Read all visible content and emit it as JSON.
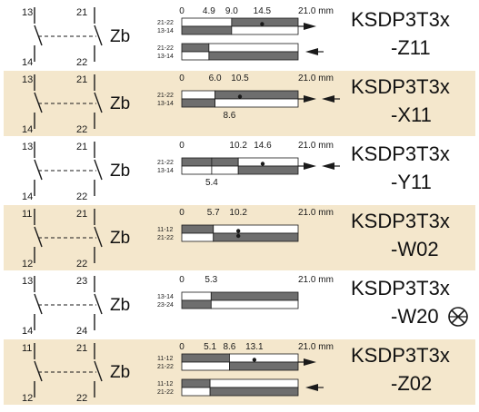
{
  "diagram": {
    "chart_data": [
      {
        "type": "travel-diagram",
        "contacts": {
          "tl": "13",
          "tr": "21",
          "bl": "14",
          "br": "22"
        },
        "function": "Zb",
        "model": [
          "KSDP3T3x",
          "-Z11"
        ],
        "ticks_top": [
          {
            "x": 0,
            "label": "0"
          },
          {
            "x": 4.9,
            "label": "4.9"
          },
          {
            "x": 9.0,
            "label": "9.0"
          },
          {
            "x": 14.5,
            "label": "14.5"
          },
          {
            "x": 21.0,
            "label": "21.0 mm"
          }
        ],
        "ticks_bottom": [],
        "bars": [
          {
            "labels": [
              "21-22",
              "13-14"
            ],
            "segments": [
              {
                "from": 0,
                "to": 9.0,
                "state": "open"
              },
              {
                "from": 9.0,
                "to": 21.0,
                "state": "closed"
              }
            ],
            "dot": 14.5,
            "arrow": "right"
          },
          {
            "labels": [
              "21-22",
              "13-14"
            ],
            "segments": [
              {
                "from": 0,
                "to": 4.9,
                "state": "closed"
              },
              {
                "from": 4.9,
                "to": 21.0,
                "state": "open"
              }
            ],
            "dot": null,
            "arrow": "left"
          }
        ],
        "bg": "plain"
      },
      {
        "type": "travel-diagram",
        "contacts": {
          "tl": "13",
          "tr": "21",
          "bl": "14",
          "br": "22"
        },
        "function": "Zb",
        "model": [
          "KSDP3T3x",
          "-X11"
        ],
        "ticks_top": [
          {
            "x": 0,
            "label": "0"
          },
          {
            "x": 6.0,
            "label": "6.0"
          },
          {
            "x": 10.5,
            "label": "10.5"
          },
          {
            "x": 21.0,
            "label": "21.0 mm"
          }
        ],
        "ticks_bottom": [
          {
            "x": 8.6,
            "label": "8.6"
          }
        ],
        "bars": [
          {
            "labels": [
              "21-22",
              "13-14"
            ],
            "segments": [
              {
                "from": 0,
                "to": 6.0,
                "state": "open"
              },
              {
                "from": 6.0,
                "to": 21.0,
                "state": "closed"
              }
            ],
            "dot": 10.5,
            "arrow": "both"
          }
        ],
        "bg": "tint"
      },
      {
        "type": "travel-diagram",
        "contacts": {
          "tl": "13",
          "tr": "21",
          "bl": "14",
          "br": "22"
        },
        "function": "Zb",
        "model": [
          "KSDP3T3x",
          "-Y11"
        ],
        "ticks_top": [
          {
            "x": 0,
            "label": "0"
          },
          {
            "x": 10.2,
            "label": "10.2"
          },
          {
            "x": 14.6,
            "label": "14.6"
          },
          {
            "x": 21.0,
            "label": "21.0 mm"
          }
        ],
        "ticks_bottom": [
          {
            "x": 5.4,
            "label": "5.4"
          }
        ],
        "bars": [
          {
            "labels": [
              "21-22",
              "13-14"
            ],
            "segments": [
              {
                "from": 0,
                "to": 5.4,
                "state": "closed"
              },
              {
                "from": 5.4,
                "to": 10.2,
                "state": "closed"
              },
              {
                "from": 10.2,
                "to": 21.0,
                "state": "open"
              }
            ],
            "dot": 14.6,
            "arrow": "both"
          }
        ],
        "bg": "plain"
      },
      {
        "type": "travel-diagram",
        "contacts": {
          "tl": "11",
          "tr": "21",
          "bl": "12",
          "br": "22"
        },
        "function": "Zb",
        "model": [
          "KSDP3T3x",
          "-W02"
        ],
        "ticks_top": [
          {
            "x": 0,
            "label": "0"
          },
          {
            "x": 5.7,
            "label": "5.7"
          },
          {
            "x": 10.2,
            "label": "10.2"
          },
          {
            "x": 21.0,
            "label": "21.0 mm"
          }
        ],
        "ticks_bottom": [],
        "bars": [
          {
            "labels": [
              "11-12",
              "21-22"
            ],
            "segments": [
              {
                "from": 0,
                "to": 5.7,
                "state": "closed"
              },
              {
                "from": 5.7,
                "to": 21.0,
                "state": "open"
              }
            ],
            "dot": 10.2,
            "dot2": true,
            "arrow": "none"
          }
        ],
        "bg": "tint"
      },
      {
        "type": "travel-diagram",
        "contacts": {
          "tl": "13",
          "tr": "23",
          "bl": "14",
          "br": "24"
        },
        "function": "Zb",
        "model": [
          "KSDP3T3x",
          "-W20"
        ],
        "ticks_top": [
          {
            "x": 0,
            "label": "0"
          },
          {
            "x": 5.3,
            "label": "5.3"
          },
          {
            "x": 21.0,
            "label": "21.0 mm"
          }
        ],
        "ticks_bottom": [],
        "bars": [
          {
            "labels": [
              "13-14",
              "23-24"
            ],
            "segments": [
              {
                "from": 0,
                "to": 5.3,
                "state": "open"
              },
              {
                "from": 5.3,
                "to": 21.0,
                "state": "closed"
              }
            ],
            "dot": null,
            "arrow": "none"
          }
        ],
        "bg": "plain",
        "symbol": "no-rotate-symbol"
      },
      {
        "type": "travel-diagram",
        "contacts": {
          "tl": "11",
          "tr": "21",
          "bl": "12",
          "br": "22"
        },
        "function": "Zb",
        "model": [
          "KSDP3T3x",
          "-Z02"
        ],
        "ticks_top": [
          {
            "x": 0,
            "label": "0"
          },
          {
            "x": 5.1,
            "label": "5.1"
          },
          {
            "x": 8.6,
            "label": "8.6"
          },
          {
            "x": 13.1,
            "label": "13.1"
          },
          {
            "x": 21.0,
            "label": "21.0 mm"
          }
        ],
        "ticks_bottom": [],
        "bars": [
          {
            "labels": [
              "11-12",
              "21-22"
            ],
            "segments": [
              {
                "from": 0,
                "to": 8.6,
                "state": "closed"
              },
              {
                "from": 8.6,
                "to": 21.0,
                "state": "open"
              }
            ],
            "dot": 13.1,
            "arrow": "right"
          },
          {
            "labels": [
              "11-12",
              "21-22"
            ],
            "segments": [
              {
                "from": 0,
                "to": 5.1,
                "state": "closed"
              },
              {
                "from": 5.1,
                "to": 21.0,
                "state": "open"
              }
            ],
            "dot": null,
            "arrow": "left"
          }
        ],
        "bg": "tint"
      }
    ],
    "colors": {
      "closed": "#6e6e6e",
      "open": "#ffffff",
      "tint": "#f4e7cc",
      "ink": "#1a1a1a"
    }
  }
}
